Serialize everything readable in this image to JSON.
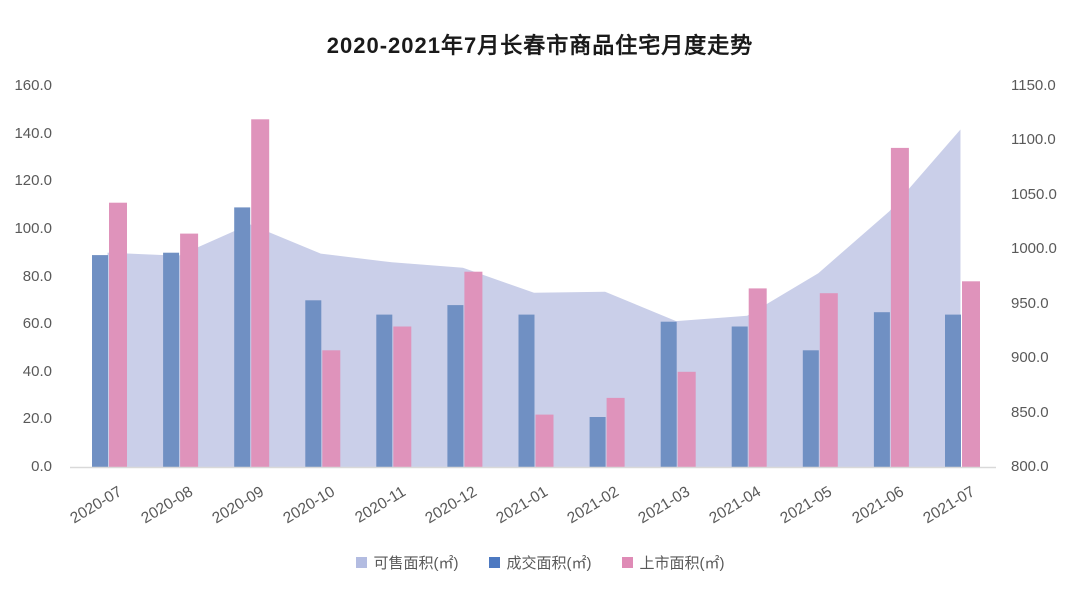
{
  "title": "2020-2021年7月长春市商品住宅月度走势",
  "chart_data": {
    "type": "combo",
    "title": "2020-2021年7月长春市商品住宅月度走势",
    "categories": [
      "2020-07",
      "2020-08",
      "2020-09",
      "2020-10",
      "2020-11",
      "2020-12",
      "2021-01",
      "2021-02",
      "2021-03",
      "2021-04",
      "2021-05",
      "2021-06",
      "2021-07"
    ],
    "series": [
      {
        "name": "可售面积(㎡)",
        "type": "area",
        "axis": "right",
        "color": "#cacfe9",
        "values": [
          997,
          994,
          1023,
          996,
          988,
          983,
          960,
          961,
          934,
          939,
          978,
          1035,
          1110
        ]
      },
      {
        "name": "成交面积(㎡)",
        "type": "bar",
        "axis": "left",
        "color": "#7090c3",
        "values": [
          89,
          90,
          109,
          70,
          64,
          68,
          64,
          21,
          61,
          59,
          49,
          65,
          64
        ]
      },
      {
        "name": "上市面积(㎡)",
        "type": "bar",
        "axis": "left",
        "color": "#df93bb",
        "values": [
          111,
          98,
          146,
          49,
          59,
          82,
          22,
          29,
          40,
          75,
          73,
          134,
          78
        ]
      }
    ],
    "left_axis": {
      "min": 0,
      "max": 160,
      "step": 20,
      "ticks": [
        "160.0",
        "140.0",
        "120.0",
        "100.0",
        "80.0",
        "60.0",
        "40.0",
        "20.0",
        "0.0"
      ]
    },
    "right_axis": {
      "min": 800,
      "max": 1150,
      "step": 50,
      "ticks": [
        "1150.0",
        "1100.0",
        "1050.0",
        "1000.0",
        "950.0",
        "900.0",
        "850.0",
        "800.0"
      ]
    },
    "grid": false,
    "legend_position": "bottom",
    "xlabel": "",
    "ylabel": ""
  },
  "legend": {
    "items": [
      {
        "label": "可售面积(㎡)",
        "color": "#b3bce1"
      },
      {
        "label": "成交面积(㎡)",
        "color": "#4d79c1"
      },
      {
        "label": "上市面积(㎡)",
        "color": "#df8bb6"
      }
    ]
  },
  "colors": {
    "background": "#ffffff",
    "title_text": "#1a1a1a",
    "axis_text": "#595959",
    "axis_line": "#d9d9d9"
  }
}
